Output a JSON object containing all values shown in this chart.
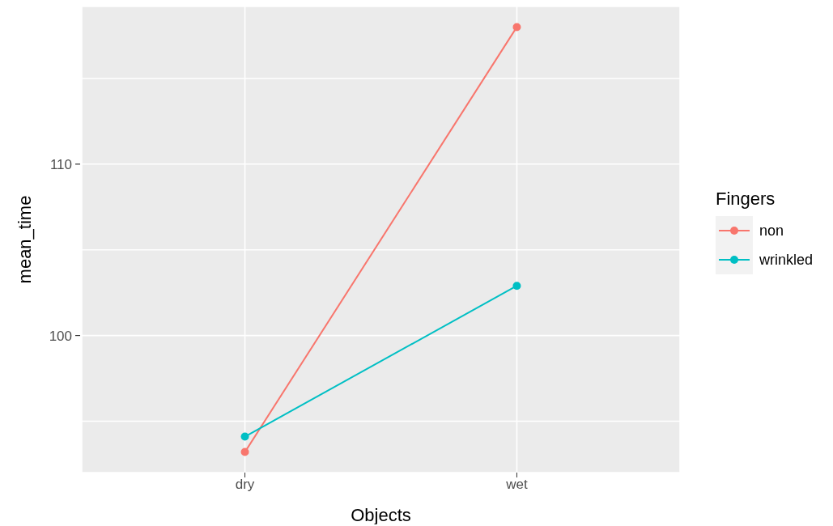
{
  "chart_data": {
    "type": "line",
    "xlabel": "Objects",
    "ylabel": "mean_time",
    "legend_title": "Fingers",
    "categories": [
      "dry",
      "wet"
    ],
    "series": [
      {
        "name": "non",
        "color": "#f8766d",
        "values": [
          93.2,
          118.0
        ]
      },
      {
        "name": "wrinkled",
        "color": "#00bfc4",
        "values": [
          94.1,
          102.9
        ]
      }
    ],
    "ylim": [
      92,
      119.2
    ],
    "yticks": [
      {
        "value": 95,
        "label": null
      },
      100,
      {
        "value": 105,
        "label": null
      },
      110,
      {
        "value": 115,
        "label": null
      }
    ],
    "grid": true,
    "legend": "right",
    "marker": "circle",
    "line_style": "solid"
  }
}
